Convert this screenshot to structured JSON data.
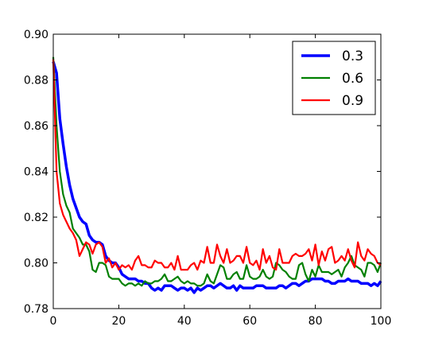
{
  "chart_data": {
    "type": "line",
    "title": "",
    "xlabel": "",
    "ylabel": "",
    "xlim": [
      0,
      100
    ],
    "ylim": [
      0.78,
      0.9
    ],
    "x_ticks": [
      0,
      20,
      40,
      60,
      80,
      100
    ],
    "y_ticks": [
      0.78,
      0.8,
      0.82,
      0.84,
      0.86,
      0.88,
      0.9
    ],
    "x_tick_labels": [
      "0",
      "20",
      "40",
      "60",
      "80",
      "100"
    ],
    "y_tick_labels": [
      "0.78",
      "0.80",
      "0.82",
      "0.84",
      "0.86",
      "0.88",
      "0.90"
    ],
    "grid": false,
    "legend": {
      "placement": "top-right"
    },
    "series": [
      {
        "name": "0.3",
        "color": "#0000ff",
        "values": [
          0.888,
          0.883,
          0.863,
          0.852,
          0.842,
          0.834,
          0.828,
          0.824,
          0.82,
          0.818,
          0.817,
          0.812,
          0.81,
          0.809,
          0.809,
          0.808,
          0.803,
          0.801,
          0.8,
          0.8,
          0.798,
          0.795,
          0.794,
          0.793,
          0.793,
          0.793,
          0.792,
          0.792,
          0.791,
          0.791,
          0.789,
          0.788,
          0.789,
          0.788,
          0.79,
          0.79,
          0.79,
          0.789,
          0.788,
          0.789,
          0.789,
          0.788,
          0.789,
          0.787,
          0.789,
          0.788,
          0.789,
          0.79,
          0.79,
          0.789,
          0.79,
          0.791,
          0.79,
          0.789,
          0.789,
          0.79,
          0.788,
          0.79,
          0.789,
          0.789,
          0.789,
          0.789,
          0.79,
          0.79,
          0.79,
          0.789,
          0.789,
          0.789,
          0.789,
          0.79,
          0.79,
          0.789,
          0.79,
          0.791,
          0.791,
          0.79,
          0.791,
          0.792,
          0.792,
          0.793,
          0.793,
          0.793,
          0.793,
          0.792,
          0.792,
          0.791,
          0.791,
          0.792,
          0.792,
          0.792,
          0.793,
          0.792,
          0.792,
          0.792,
          0.791,
          0.791,
          0.791,
          0.79,
          0.791,
          0.79,
          0.792
        ]
      },
      {
        "name": "0.6",
        "color": "#008000",
        "values": [
          0.89,
          0.86,
          0.84,
          0.83,
          0.825,
          0.822,
          0.815,
          0.813,
          0.811,
          0.808,
          0.808,
          0.805,
          0.797,
          0.796,
          0.8,
          0.8,
          0.799,
          0.794,
          0.793,
          0.793,
          0.793,
          0.791,
          0.79,
          0.791,
          0.791,
          0.79,
          0.791,
          0.79,
          0.792,
          0.791,
          0.791,
          0.792,
          0.792,
          0.793,
          0.795,
          0.792,
          0.792,
          0.793,
          0.794,
          0.792,
          0.791,
          0.792,
          0.791,
          0.791,
          0.79,
          0.79,
          0.791,
          0.795,
          0.792,
          0.791,
          0.795,
          0.799,
          0.798,
          0.793,
          0.793,
          0.795,
          0.796,
          0.793,
          0.793,
          0.799,
          0.794,
          0.793,
          0.793,
          0.794,
          0.797,
          0.794,
          0.793,
          0.794,
          0.8,
          0.799,
          0.797,
          0.796,
          0.794,
          0.793,
          0.793,
          0.799,
          0.8,
          0.795,
          0.792,
          0.797,
          0.794,
          0.799,
          0.796,
          0.796,
          0.796,
          0.795,
          0.796,
          0.797,
          0.794,
          0.798,
          0.8,
          0.803,
          0.799,
          0.798,
          0.797,
          0.794,
          0.8,
          0.8,
          0.799,
          0.796,
          0.8
        ]
      },
      {
        "name": "0.9",
        "color": "#ff0000",
        "values": [
          0.889,
          0.84,
          0.826,
          0.821,
          0.818,
          0.815,
          0.813,
          0.81,
          0.803,
          0.806,
          0.809,
          0.808,
          0.804,
          0.808,
          0.809,
          0.807,
          0.8,
          0.802,
          0.798,
          0.8,
          0.797,
          0.799,
          0.798,
          0.799,
          0.797,
          0.801,
          0.803,
          0.799,
          0.799,
          0.798,
          0.798,
          0.801,
          0.8,
          0.8,
          0.798,
          0.798,
          0.8,
          0.797,
          0.803,
          0.797,
          0.797,
          0.797,
          0.799,
          0.8,
          0.797,
          0.801,
          0.8,
          0.807,
          0.8,
          0.8,
          0.808,
          0.803,
          0.8,
          0.806,
          0.8,
          0.801,
          0.803,
          0.803,
          0.8,
          0.807,
          0.8,
          0.799,
          0.801,
          0.797,
          0.806,
          0.8,
          0.803,
          0.798,
          0.797,
          0.806,
          0.8,
          0.8,
          0.8,
          0.803,
          0.804,
          0.803,
          0.803,
          0.804,
          0.806,
          0.801,
          0.808,
          0.799,
          0.805,
          0.801,
          0.806,
          0.807,
          0.8,
          0.801,
          0.803,
          0.801,
          0.806,
          0.801,
          0.798,
          0.809,
          0.803,
          0.801,
          0.806,
          0.804,
          0.803,
          0.8,
          0.799
        ]
      }
    ]
  }
}
